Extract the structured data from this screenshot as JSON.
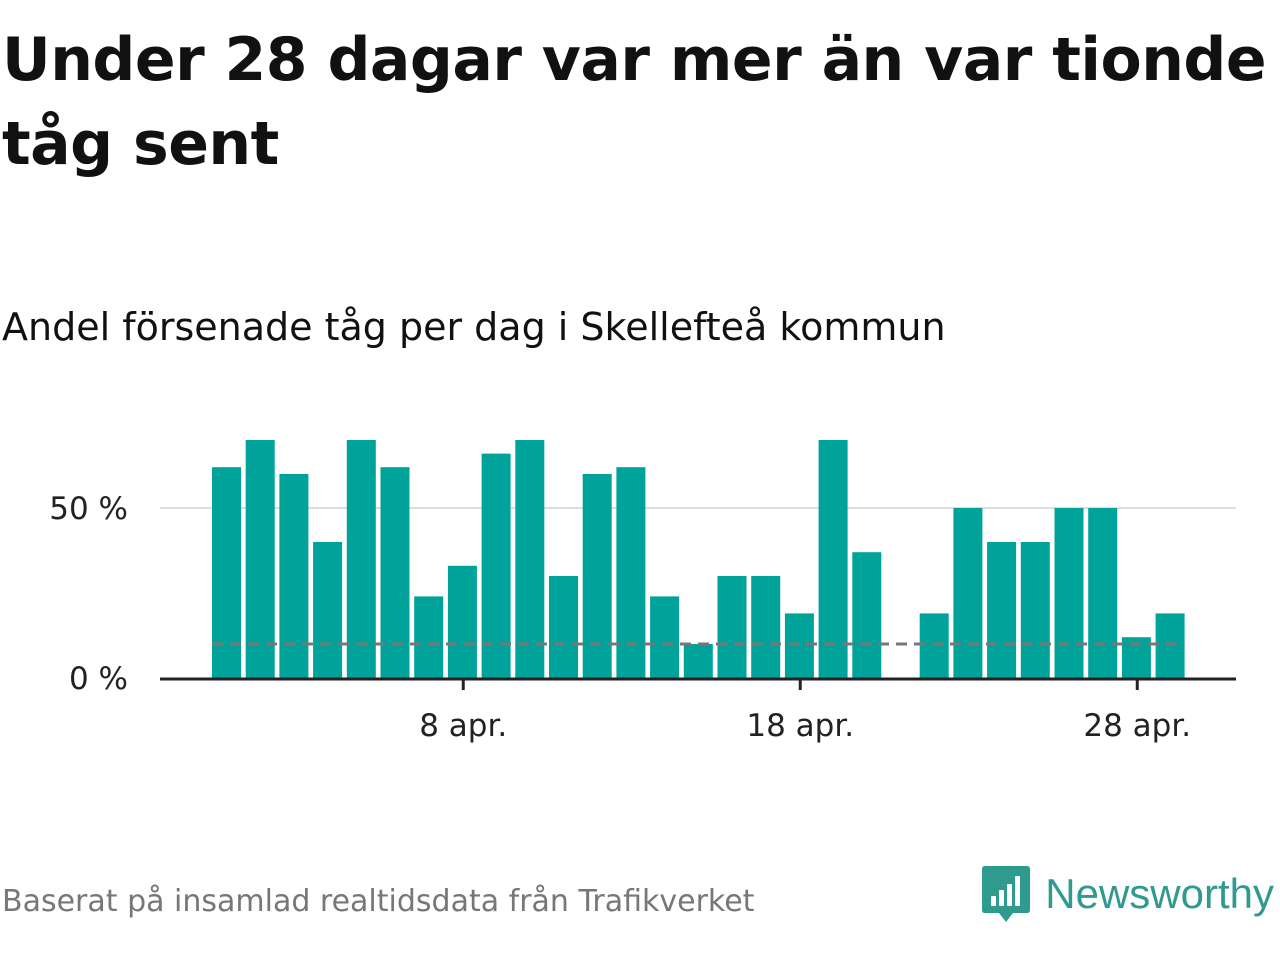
{
  "title": "Under 28 dagar var mer än var tionde tåg sent",
  "subtitle": "Andel försenade tåg per dag i Skellefteå kommun",
  "source": "Baserat på insamlad realtidsdata från Trafikverket",
  "brand": {
    "name": "Newsworthy",
    "icon": "newsworthy-logo-icon",
    "color": "#2f9a8e"
  },
  "colors": {
    "bar": "#00a39a",
    "reference": "#777777",
    "grid": "#dddddd",
    "axis": "#222222"
  },
  "chart_data": {
    "type": "bar",
    "title": "Andel försenade tåg per dag i Skellefteå kommun",
    "xlabel": "",
    "ylabel": "",
    "x_day_range": [
      1,
      30
    ],
    "x_ticks": [
      {
        "day": 8,
        "label": "8 apr."
      },
      {
        "day": 18,
        "label": "18 apr."
      },
      {
        "day": 28,
        "label": "28 apr."
      }
    ],
    "ylim": [
      0,
      80
    ],
    "y_ticks": [
      {
        "value": 0,
        "label": "0 %"
      },
      {
        "value": 50,
        "label": "50 %"
      }
    ],
    "reference_value": 10,
    "bars": [
      {
        "day": 1,
        "value": 62
      },
      {
        "day": 2,
        "value": 70
      },
      {
        "day": 3,
        "value": 60
      },
      {
        "day": 4,
        "value": 40
      },
      {
        "day": 5,
        "value": 70
      },
      {
        "day": 6,
        "value": 62
      },
      {
        "day": 7,
        "value": 24
      },
      {
        "day": 8,
        "value": 33
      },
      {
        "day": 9,
        "value": 66
      },
      {
        "day": 10,
        "value": 70
      },
      {
        "day": 11,
        "value": 30
      },
      {
        "day": 12,
        "value": 60
      },
      {
        "day": 13,
        "value": 62
      },
      {
        "day": 14,
        "value": 24
      },
      {
        "day": 15,
        "value": 10
      },
      {
        "day": 16,
        "value": 30
      },
      {
        "day": 17,
        "value": 30
      },
      {
        "day": 18,
        "value": 19
      },
      {
        "day": 19,
        "value": 70
      },
      {
        "day": 20,
        "value": 37
      },
      {
        "day": 22,
        "value": 19
      },
      {
        "day": 23,
        "value": 50
      },
      {
        "day": 24,
        "value": 40
      },
      {
        "day": 25,
        "value": 40
      },
      {
        "day": 26,
        "value": 50
      },
      {
        "day": 27,
        "value": 50
      },
      {
        "day": 28,
        "value": 12
      },
      {
        "day": 29,
        "value": 19
      }
    ]
  }
}
